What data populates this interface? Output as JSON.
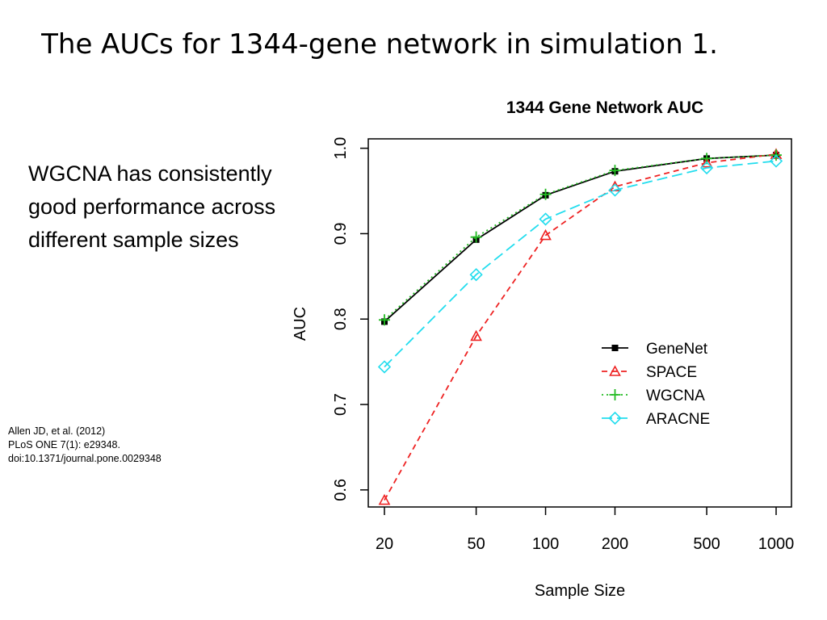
{
  "slide": {
    "title": "The AUCs for 1344-gene network in simulation 1.",
    "bullet": "WGCNA has consistently good performance across different sample sizes",
    "citation": [
      "Allen JD, et al. (2012)",
      "PLoS ONE 7(1): e29348.",
      "doi:10.1371/journal.pone.0029348"
    ]
  },
  "chart_data": {
    "type": "line",
    "title": "1344 Gene Network AUC",
    "xlabel": "Sample Size",
    "ylabel": "AUC",
    "x_scale": "log",
    "x": [
      20,
      50,
      100,
      200,
      500,
      1000
    ],
    "x_tick_labels": [
      "20",
      "50",
      "100",
      "200",
      "500",
      "1000"
    ],
    "ylim": [
      0.58,
      1.011
    ],
    "y_ticks": [
      "0.6",
      "0.7",
      "0.8",
      "0.9",
      "1.0"
    ],
    "legend_position": "bottom-right",
    "grid": false,
    "series": [
      {
        "name": "GeneNet",
        "color": "#000000",
        "dash": "solid",
        "marker": "filled-square",
        "values": [
          0.797,
          0.893,
          0.945,
          0.973,
          0.988,
          0.992
        ]
      },
      {
        "name": "SPACE",
        "color": "#ee2222",
        "dash": "dashed",
        "marker": "triangle",
        "values": [
          0.588,
          0.78,
          0.898,
          0.955,
          0.983,
          0.993
        ]
      },
      {
        "name": "WGCNA",
        "color": "#22bb22",
        "dash": "dotted",
        "marker": "plus",
        "values": [
          0.799,
          0.896,
          0.946,
          0.974,
          0.988,
          0.992
        ]
      },
      {
        "name": "ARACNE",
        "color": "#22ddee",
        "dash": "long-dash",
        "marker": "diamond",
        "values": [
          0.744,
          0.852,
          0.917,
          0.951,
          0.977,
          0.985
        ]
      }
    ]
  }
}
